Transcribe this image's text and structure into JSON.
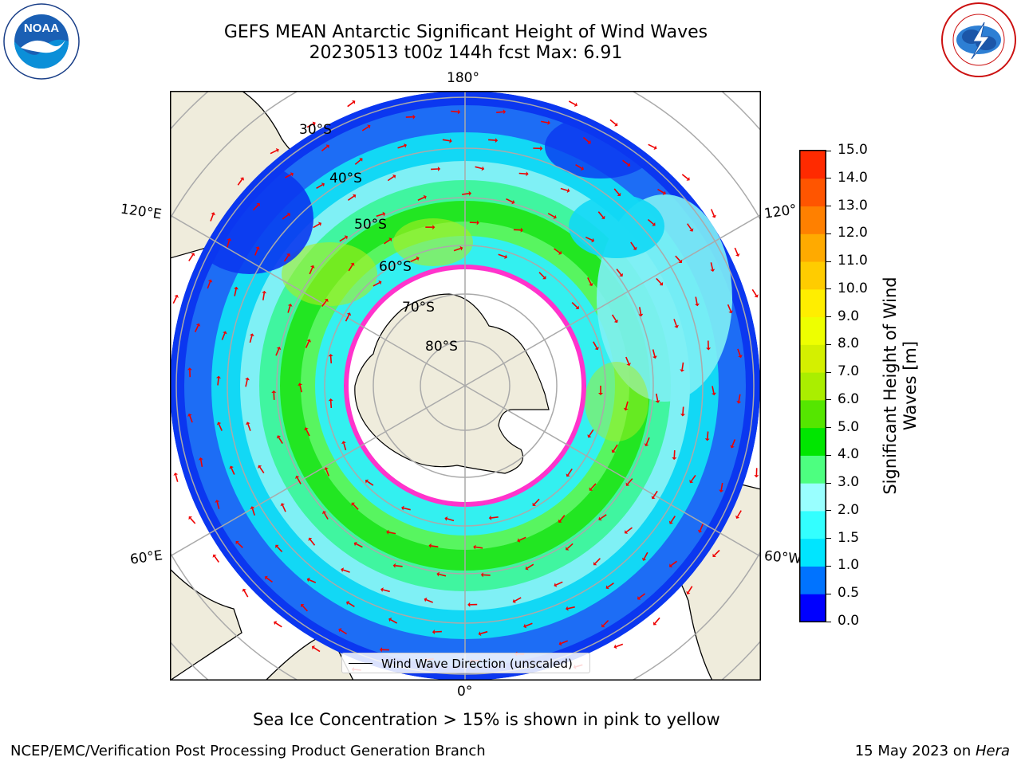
{
  "title": {
    "line1": "GEFS MEAN Antarctic Significant Height of Wind Waves",
    "line2": "20230513 t00z 144h fcst   Max: 6.91"
  },
  "logos": {
    "noaa": {
      "text": "NOAA",
      "icon": "noaa-logo-icon",
      "ring_text": "NATIONAL OCEANIC AND ATMOSPHERIC ADMINISTRATION · U.S. DEPARTMENT OF COMMERCE"
    },
    "nws": {
      "icon": "national-weather-service-logo-icon",
      "ring_text": "NATIONAL WEATHER SERVICE"
    }
  },
  "map": {
    "longitude_labels": [
      "180°",
      "120°E",
      "120°",
      "60°E",
      "60°W",
      "0°"
    ],
    "latitude_labels": [
      "30°S",
      "40°S",
      "50°S",
      "60°S",
      "70°S",
      "80°S"
    ],
    "legend": "Wind Wave Direction (unscaled)",
    "land_color": "#efecdc",
    "ice_free_color": "#ffffff",
    "sea_ice_color": "#ff33cc"
  },
  "colorbar": {
    "label": "Significant Height of Wind Waves [m]",
    "ticks": [
      "0.0",
      "0.5",
      "1.0",
      "1.5",
      "2.0",
      "3.0",
      "4.0",
      "5.0",
      "6.0",
      "7.0",
      "8.0",
      "9.0",
      "10.0",
      "11.0",
      "12.0",
      "13.0",
      "14.0",
      "15.0"
    ],
    "colors": [
      "#0000ff",
      "#0073ff",
      "#00e5ff",
      "#33ffff",
      "#99ffff",
      "#4dff80",
      "#00e600",
      "#55e600",
      "#aaee00",
      "#d4f000",
      "#eeff00",
      "#ffee00",
      "#ffcc00",
      "#ffaa00",
      "#ff8000",
      "#ff5500",
      "#ff2a00"
    ]
  },
  "caption": "Sea Ice Concentration > 15% is shown in pink to yellow",
  "footer": {
    "left": "NCEP/EMC/Verification Post Processing Product Generation Branch",
    "right_prefix": "15 May 2023 on ",
    "right_machine": "Hera"
  }
}
